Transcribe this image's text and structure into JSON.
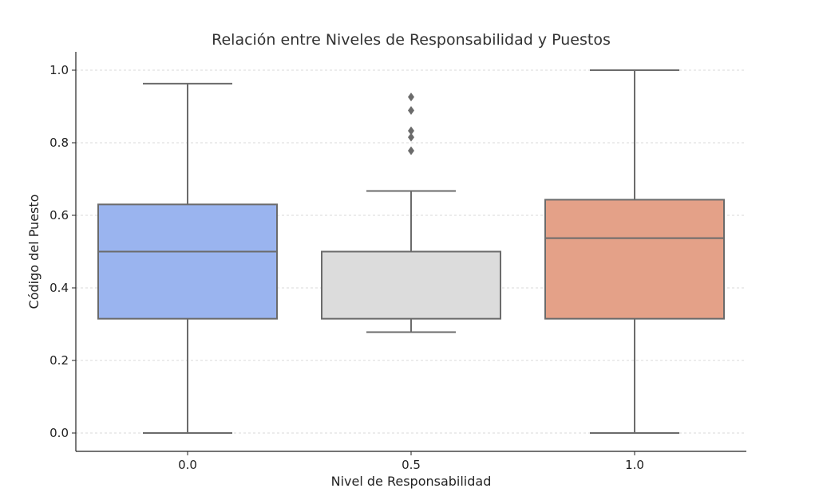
{
  "chart_data": {
    "type": "box",
    "title": "Relación entre Niveles de Responsabilidad y Puestos",
    "xlabel": "Nivel de Responsabilidad",
    "ylabel": "Código del Puesto",
    "categories": [
      "0.0",
      "0.5",
      "1.0"
    ],
    "yticks": [
      "0.0",
      "0.2",
      "0.4",
      "0.6",
      "0.8",
      "1.0"
    ],
    "ylim": [
      -0.05,
      1.05
    ],
    "grid": "horizontal dashed",
    "legend": "none",
    "boxes": [
      {
        "category": "0.0",
        "whisker_low": 0.0,
        "q1": 0.315,
        "median": 0.5,
        "q3": 0.63,
        "whisker_high": 0.963,
        "outliers": [],
        "color": "#9ab4ef"
      },
      {
        "category": "0.5",
        "whisker_low": 0.278,
        "q1": 0.315,
        "median": 0.5,
        "q3": 0.5,
        "whisker_high": 0.667,
        "outliers": [
          0.926,
          0.889,
          0.833,
          0.815,
          0.778
        ],
        "color": "#dcdcdc"
      },
      {
        "category": "1.0",
        "whisker_low": 0.0,
        "q1": 0.315,
        "median": 0.537,
        "q3": 0.643,
        "whisker_high": 1.0,
        "outliers": [],
        "color": "#e4a188"
      }
    ],
    "line_color": "#6b6b6b",
    "grid_color": "#cccccc"
  }
}
